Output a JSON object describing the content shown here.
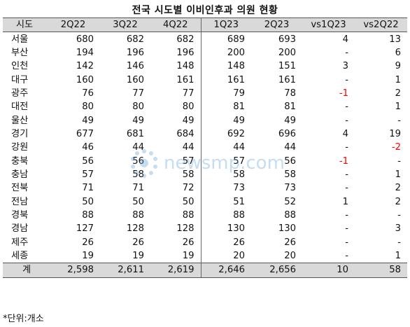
{
  "title": "전국 시도별 이비인후과 의원 현황",
  "columns": [
    "시도",
    "2Q22",
    "3Q22",
    "4Q22",
    "1Q23",
    "2Q23",
    "vs1Q23",
    "vs2Q22"
  ],
  "rows": [
    {
      "region": "서울",
      "q2_22": "680",
      "q3_22": "682",
      "q4_22": "682",
      "q1_23": "689",
      "q2_23": "693",
      "vs1q23": "4",
      "vs2q22": "13"
    },
    {
      "region": "부산",
      "q2_22": "194",
      "q3_22": "196",
      "q4_22": "196",
      "q1_23": "200",
      "q2_23": "200",
      "vs1q23": "-",
      "vs2q22": "6"
    },
    {
      "region": "인천",
      "q2_22": "142",
      "q3_22": "146",
      "q4_22": "148",
      "q1_23": "148",
      "q2_23": "151",
      "vs1q23": "3",
      "vs2q22": "9"
    },
    {
      "region": "대구",
      "q2_22": "160",
      "q3_22": "160",
      "q4_22": "161",
      "q1_23": "161",
      "q2_23": "161",
      "vs1q23": "-",
      "vs2q22": "1"
    },
    {
      "region": "광주",
      "q2_22": "76",
      "q3_22": "77",
      "q4_22": "77",
      "q1_23": "79",
      "q2_23": "78",
      "vs1q23": "-1",
      "vs2q22": "2"
    },
    {
      "region": "대전",
      "q2_22": "80",
      "q3_22": "80",
      "q4_22": "80",
      "q1_23": "81",
      "q2_23": "81",
      "vs1q23": "-",
      "vs2q22": "1"
    },
    {
      "region": "울산",
      "q2_22": "49",
      "q3_22": "49",
      "q4_22": "49",
      "q1_23": "49",
      "q2_23": "49",
      "vs1q23": "-",
      "vs2q22": "-"
    },
    {
      "region": "경기",
      "q2_22": "677",
      "q3_22": "681",
      "q4_22": "684",
      "q1_23": "692",
      "q2_23": "696",
      "vs1q23": "4",
      "vs2q22": "19"
    },
    {
      "region": "강원",
      "q2_22": "46",
      "q3_22": "44",
      "q4_22": "44",
      "q1_23": "44",
      "q2_23": "44",
      "vs1q23": "-",
      "vs2q22": "-2"
    },
    {
      "region": "충북",
      "q2_22": "56",
      "q3_22": "56",
      "q4_22": "57",
      "q1_23": "57",
      "q2_23": "56",
      "vs1q23": "-1",
      "vs2q22": "-"
    },
    {
      "region": "충남",
      "q2_22": "57",
      "q3_22": "58",
      "q4_22": "58",
      "q1_23": "58",
      "q2_23": "58",
      "vs1q23": "-",
      "vs2q22": "1"
    },
    {
      "region": "전북",
      "q2_22": "71",
      "q3_22": "71",
      "q4_22": "72",
      "q1_23": "73",
      "q2_23": "73",
      "vs1q23": "-",
      "vs2q22": "2"
    },
    {
      "region": "전남",
      "q2_22": "50",
      "q3_22": "50",
      "q4_22": "50",
      "q1_23": "51",
      "q2_23": "52",
      "vs1q23": "1",
      "vs2q22": "2"
    },
    {
      "region": "경북",
      "q2_22": "88",
      "q3_22": "88",
      "q4_22": "88",
      "q1_23": "88",
      "q2_23": "88",
      "vs1q23": "-",
      "vs2q22": "-"
    },
    {
      "region": "경남",
      "q2_22": "127",
      "q3_22": "128",
      "q4_22": "128",
      "q1_23": "130",
      "q2_23": "130",
      "vs1q23": "-",
      "vs2q22": "3"
    },
    {
      "region": "제주",
      "q2_22": "26",
      "q3_22": "26",
      "q4_22": "26",
      "q1_23": "26",
      "q2_23": "26",
      "vs1q23": "-",
      "vs2q22": "-"
    },
    {
      "region": "세종",
      "q2_22": "19",
      "q3_22": "19",
      "q4_22": "19",
      "q1_23": "20",
      "q2_23": "20",
      "vs1q23": "-",
      "vs2q22": "1"
    }
  ],
  "total": {
    "region": "계",
    "q2_22": "2,598",
    "q3_22": "2,611",
    "q4_22": "2,619",
    "q1_23": "2,646",
    "q2_23": "2,656",
    "vs1q23": "10",
    "vs2q22": "58"
  },
  "footnote": "*단위:개소",
  "watermark": "newsmp.com",
  "colors": {
    "header_bg": "#d9d9d9",
    "negative": "#ff0000",
    "watermark": "#5aa0d8"
  }
}
